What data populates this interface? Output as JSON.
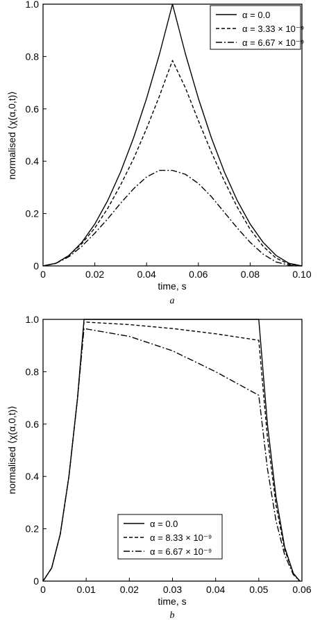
{
  "chart_data": [
    {
      "type": "line",
      "panel_label": "a",
      "xlabel": "time, s",
      "ylabel": "normalised ⟨χ(α,0,t)⟩",
      "xlim": [
        0,
        0.1
      ],
      "ylim": [
        0,
        1.0
      ],
      "x_ticks": [
        0,
        0.02,
        0.04,
        0.06,
        0.08,
        0.1
      ],
      "x_tick_labels": [
        "0",
        "0.02",
        "0.04",
        "0.06",
        "0.08",
        "0.10"
      ],
      "y_ticks": [
        0,
        0.2,
        0.4,
        0.6,
        0.8,
        1.0
      ],
      "y_tick_labels": [
        "0",
        "0.2",
        "0.4",
        "0.6",
        "0.8",
        "1.0"
      ],
      "grid": false,
      "legend_position": "top-right",
      "series": [
        {
          "name": "α = 0.0",
          "line_style": "solid",
          "x": [
            0,
            0.005,
            0.01,
            0.015,
            0.02,
            0.025,
            0.03,
            0.035,
            0.04,
            0.045,
            0.05,
            0.055,
            0.06,
            0.065,
            0.07,
            0.075,
            0.08,
            0.085,
            0.09,
            0.095,
            0.1
          ],
          "y": [
            0,
            0.01,
            0.04,
            0.09,
            0.16,
            0.25,
            0.36,
            0.49,
            0.64,
            0.81,
            1.0,
            0.81,
            0.64,
            0.49,
            0.36,
            0.25,
            0.16,
            0.09,
            0.04,
            0.01,
            0
          ]
        },
        {
          "name": "α = 3.33 × 10⁻⁹",
          "line_style": "dashed",
          "x": [
            0,
            0.005,
            0.01,
            0.015,
            0.02,
            0.025,
            0.03,
            0.035,
            0.04,
            0.045,
            0.05,
            0.055,
            0.06,
            0.065,
            0.07,
            0.075,
            0.08,
            0.085,
            0.09,
            0.095,
            0.1
          ],
          "y": [
            0,
            0.01,
            0.04,
            0.085,
            0.145,
            0.22,
            0.31,
            0.41,
            0.525,
            0.65,
            0.785,
            0.68,
            0.555,
            0.435,
            0.325,
            0.225,
            0.14,
            0.075,
            0.03,
            0.007,
            0
          ]
        },
        {
          "name": "α = 6.67 × 10⁻⁹",
          "line_style": "dashdot",
          "x": [
            0,
            0.005,
            0.01,
            0.015,
            0.02,
            0.025,
            0.03,
            0.035,
            0.04,
            0.045,
            0.05,
            0.055,
            0.06,
            0.065,
            0.07,
            0.075,
            0.08,
            0.085,
            0.09,
            0.095,
            0.1
          ],
          "y": [
            0,
            0.01,
            0.035,
            0.075,
            0.125,
            0.18,
            0.24,
            0.295,
            0.34,
            0.365,
            0.365,
            0.35,
            0.315,
            0.265,
            0.205,
            0.145,
            0.09,
            0.045,
            0.015,
            0.003,
            0
          ]
        }
      ]
    },
    {
      "type": "line",
      "panel_label": "b",
      "xlabel": "time, s",
      "ylabel": "normalised ⟨χ(α,0,t)⟩",
      "xlim": [
        0,
        0.06
      ],
      "ylim": [
        0,
        1.0
      ],
      "x_ticks": [
        0,
        0.01,
        0.02,
        0.03,
        0.04,
        0.05,
        0.06
      ],
      "x_tick_labels": [
        "0",
        "0.01",
        "0.02",
        "0.03",
        "0.04",
        "0.05",
        "0.06"
      ],
      "y_ticks": [
        0,
        0.2,
        0.4,
        0.6,
        0.8,
        1.0
      ],
      "y_tick_labels": [
        "0",
        "0.2",
        "0.4",
        "0.6",
        "0.8",
        "1.0"
      ],
      "grid": false,
      "legend_position": "bottom-center",
      "series": [
        {
          "name": "α = 0.0",
          "line_style": "solid",
          "x": [
            0,
            0.002,
            0.004,
            0.006,
            0.008,
            0.0095,
            0.02,
            0.03,
            0.04,
            0.05,
            0.052,
            0.054,
            0.056,
            0.058,
            0.0595
          ],
          "y": [
            0,
            0.05,
            0.18,
            0.4,
            0.7,
            1.0,
            1.0,
            1.0,
            1.0,
            1.0,
            0.6,
            0.32,
            0.13,
            0.03,
            0
          ]
        },
        {
          "name": "α = 8.33 × 10⁻⁹",
          "line_style": "dashed",
          "x": [
            0,
            0.002,
            0.004,
            0.006,
            0.008,
            0.0095,
            0.02,
            0.03,
            0.04,
            0.05,
            0.052,
            0.054,
            0.056,
            0.058,
            0.0595
          ],
          "y": [
            0,
            0.05,
            0.18,
            0.4,
            0.7,
            0.99,
            0.98,
            0.965,
            0.945,
            0.92,
            0.55,
            0.29,
            0.12,
            0.03,
            0
          ]
        },
        {
          "name": "α = 6.67 × 10⁻⁹",
          "line_style": "dashdot",
          "x": [
            0,
            0.002,
            0.004,
            0.006,
            0.008,
            0.0095,
            0.02,
            0.03,
            0.04,
            0.05,
            0.052,
            0.054,
            0.056,
            0.058,
            0.0595
          ],
          "y": [
            0,
            0.05,
            0.18,
            0.4,
            0.7,
            0.965,
            0.935,
            0.88,
            0.8,
            0.71,
            0.43,
            0.23,
            0.1,
            0.025,
            0
          ]
        }
      ]
    }
  ]
}
